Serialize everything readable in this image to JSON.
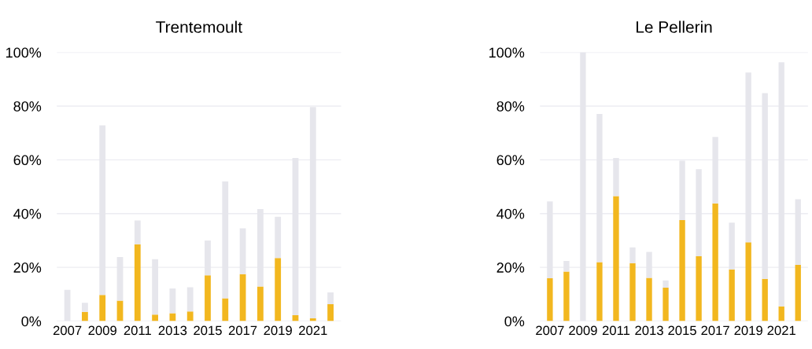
{
  "chart_data": [
    {
      "type": "bar",
      "title": "Trentemoult",
      "stacked": true,
      "categories": [
        "2007",
        null,
        "2009",
        null,
        "2011",
        null,
        "2013",
        null,
        "2015",
        null,
        "2017",
        null,
        "2019",
        null,
        "2021",
        null
      ],
      "series": [
        {
          "color": "#f2b71f",
          "values": [
            0,
            3.4,
            9.7,
            7.6,
            28.6,
            2.4,
            2.9,
            3.6,
            17,
            8.5,
            17.5,
            12.9,
            23.5,
            2.2,
            1,
            6.3
          ]
        },
        {
          "color": "#e6e6ec",
          "values": [
            11.6,
            3.4,
            63.1,
            16.2,
            8.8,
            20.6,
            9.2,
            9,
            13,
            43.5,
            17,
            28.8,
            15.3,
            58.5,
            78.6,
            4.4
          ]
        }
      ],
      "ylim": [
        0,
        100
      ],
      "yticks": [
        {
          "value": 0,
          "label": "0%"
        },
        {
          "value": 20,
          "label": "20%"
        },
        {
          "value": 40,
          "label": "40%"
        },
        {
          "value": 60,
          "label": "60%"
        },
        {
          "value": 80,
          "label": "80%"
        },
        {
          "value": 100,
          "label": "100%"
        }
      ],
      "grid": "y"
    },
    {
      "type": "bar",
      "title": "Le Pellerin",
      "stacked": true,
      "categories": [
        "2007",
        null,
        "2009",
        null,
        "2011",
        null,
        "2013",
        null,
        "2015",
        null,
        "2017",
        null,
        "2019",
        null,
        "2021",
        null
      ],
      "series": [
        {
          "color": "#f2b71f",
          "values": [
            15.9,
            18.4,
            0,
            21.9,
            46.5,
            21.6,
            16.1,
            12.4,
            37.6,
            24.1,
            43.8,
            19.2,
            29.3,
            15.7,
            5.5,
            20.9
          ]
        },
        {
          "color": "#e6e6ec",
          "values": [
            28.6,
            4,
            100,
            55.2,
            14.2,
            5.8,
            9.6,
            2.7,
            22.1,
            32.4,
            24.7,
            17.4,
            63.2,
            69.1,
            90.8,
            24.4
          ]
        }
      ],
      "ylim": [
        0,
        100
      ],
      "yticks": [
        {
          "value": 0,
          "label": "0%"
        },
        {
          "value": 20,
          "label": "20%"
        },
        {
          "value": 40,
          "label": "40%"
        },
        {
          "value": 60,
          "label": "60%"
        },
        {
          "value": 80,
          "label": "80%"
        },
        {
          "value": 100,
          "label": "100%"
        }
      ],
      "grid": "y"
    }
  ]
}
